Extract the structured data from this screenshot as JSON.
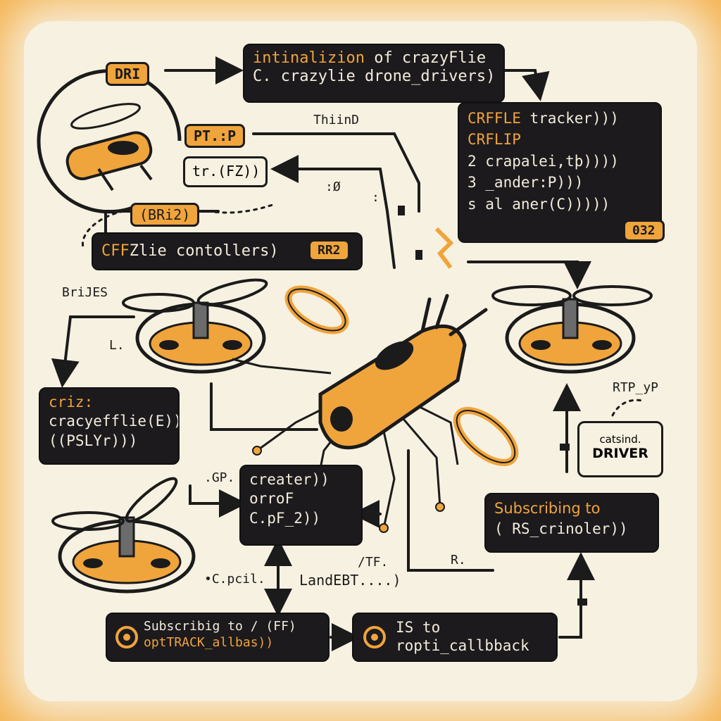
{
  "boxes": {
    "init": {
      "line1_a": "intinalizion",
      "line1_b": " of crazyFlie",
      "line2": "C. crazylie drone_drivers)"
    },
    "tracker": {
      "line1": "CRFFLE",
      "line1_b": " tracker)))",
      "line2": "CRFLIP",
      "line3": "2 crapalei,tþ))))",
      "line4": "3 _ander:P)))",
      "line5": "s al aner(C)))))",
      "badge": "032"
    },
    "controllers": {
      "label_a": "CFF",
      "label_b": "Zlie contollers)",
      "badge": "RR2"
    },
    "criz": {
      "line1": "criz:",
      "line2": "cracyefflie(E))",
      "line3": "((PSLYr)))"
    },
    "creater": {
      "line1": "creater))",
      "line2": "orroF",
      "line3": "C.pF_2))"
    },
    "subscribing_right": {
      "line1": "Subscribing to",
      "line2": "( RS_crinoler))"
    },
    "subscribing_bottom": {
      "line1": "Subscribig to / (FF)",
      "line2": "optTRACK_allbas))"
    },
    "callback": {
      "line1": "IS to",
      "line2": "ropti_callbback"
    },
    "driver_box": {
      "line1": "catsind.",
      "line2": "DRIVER"
    }
  },
  "tags": {
    "dri": "DRI",
    "ptp": "PT.:P",
    "bri2": "(BRi2)",
    "trfz": "tr.(FZ))"
  },
  "labels": {
    "thiind": "ThiinD",
    "brijes": "BriJES",
    "l": "L.",
    "rtp": "RTP_yP",
    "gp": ".GP.",
    "cpcil": "•C.pcil.",
    "landebt": "LandEBT....)",
    "tf": "/TF.",
    "r": "R.",
    "colon1": ":Ø",
    "colon2": ":"
  },
  "colors": {
    "accent": "#f0a43c",
    "box": "#1c1a1d",
    "paper": "#f7f1e1",
    "border": "#f5b24e"
  }
}
